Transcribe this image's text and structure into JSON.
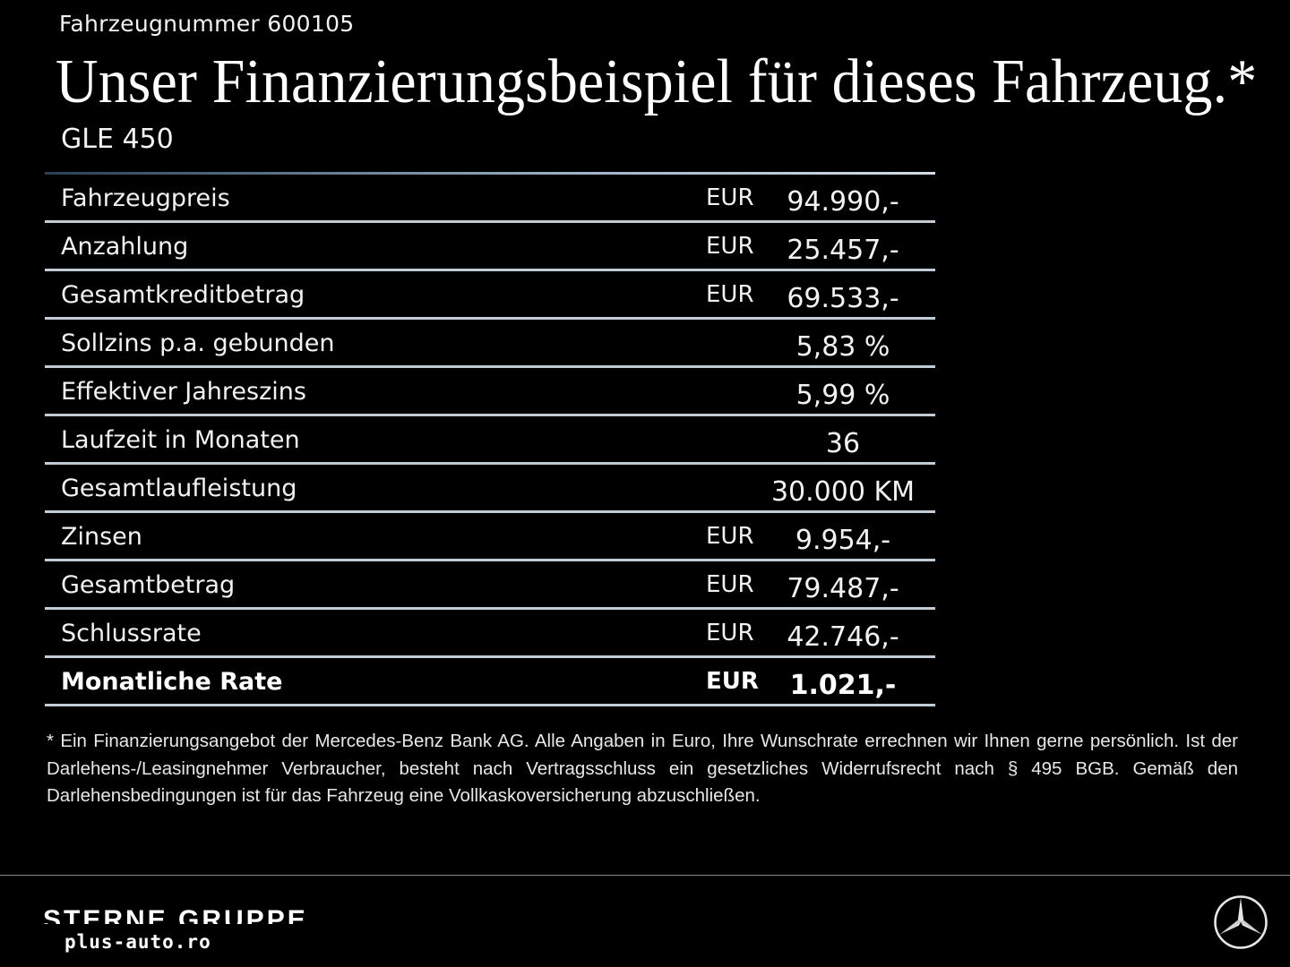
{
  "vehicle_number": "Fahrzeugnummer 600105",
  "headline": "Unser Finanzierungsbeispiel für dieses Fahrzeug.*",
  "model": "GLE 450",
  "rows": [
    {
      "label": "Fahrzeugpreis",
      "currency": "EUR",
      "value": "94.990,-"
    },
    {
      "label": "Anzahlung",
      "currency": "EUR",
      "value": "25.457,-"
    },
    {
      "label": "Gesamtkreditbetrag",
      "currency": "EUR",
      "value": "69.533,-"
    },
    {
      "label": "Sollzins p.a. gebunden",
      "currency": "",
      "value": "5,83 %"
    },
    {
      "label": "Effektiver Jahreszins",
      "currency": "",
      "value": "5,99 %"
    },
    {
      "label": "Laufzeit in Monaten",
      "currency": "",
      "value": "36"
    },
    {
      "label": "Gesamtlaufleistung",
      "currency": "",
      "value": "30.000 KM"
    },
    {
      "label": "Zinsen",
      "currency": "EUR",
      "value": "9.954,-"
    },
    {
      "label": "Gesamtbetrag",
      "currency": "EUR",
      "value": "79.487,-"
    },
    {
      "label": "Schlussrate",
      "currency": "EUR",
      "value": "42.746,-"
    },
    {
      "label": "Monatliche Rate",
      "currency": "EUR",
      "value": "1.021,-"
    }
  ],
  "footnote": "* Ein Finanzierungsangebot der Mercedes-Benz Bank AG. Alle Angaben in Euro, Ihre Wunschrate errechnen wir Ihnen gerne persönlich. Ist der Darlehens-/Leasingnehmer Verbraucher, besteht nach Vertragsschluss ein gesetzliches Widerrufsrecht nach § 495 BGB. Gemäß den Darlehensbedingungen ist für das Fahrzeug eine Vollkaskoversicherung abzuschließen.",
  "footer": {
    "brand": "STERNE GRUPPE",
    "url": "plus-auto.ro",
    "logo_icon": "mercedes-star-icon"
  },
  "colors": {
    "background": "#000000",
    "text": "#ffffff",
    "rule": "#c2ccd6"
  }
}
